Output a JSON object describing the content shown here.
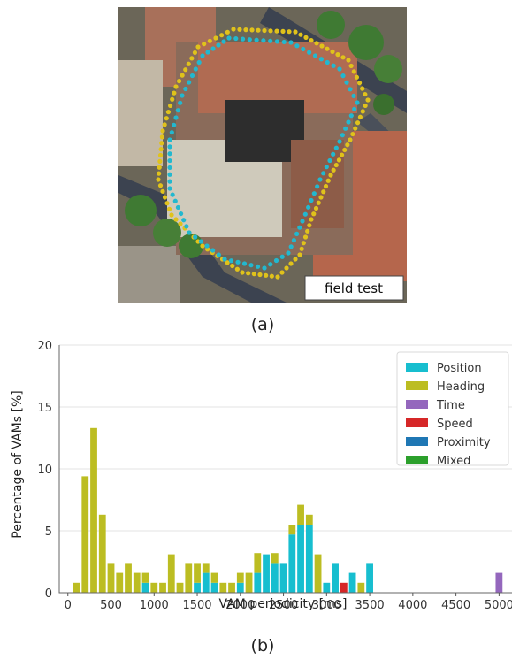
{
  "figure": {
    "photo_label": "field test",
    "caption_a": "(a)",
    "caption_b": "(b)"
  },
  "colors": {
    "trail_cyan": "#22b8cf",
    "trail_yellow": "#e0c21b",
    "roof": "#b06b52",
    "tree": "#3f7a33",
    "road": "#3c4350"
  },
  "chart_data": {
    "type": "bar",
    "stacked": true,
    "xlabel": "VAM periodicity [ms]",
    "ylabel": "Percentage of VAMs [%]",
    "xlim": [
      -100,
      5150
    ],
    "ylim": [
      0,
      20
    ],
    "xticks": [
      0,
      500,
      1000,
      1500,
      2000,
      2500,
      3000,
      3500,
      4000,
      4500,
      5000
    ],
    "yticks": [
      0,
      5,
      10,
      15,
      20
    ],
    "grid": "horizontal",
    "legend_position": "top-right",
    "bin_width": 100,
    "x": [
      100,
      200,
      300,
      400,
      500,
      600,
      700,
      800,
      900,
      1000,
      1100,
      1200,
      1300,
      1400,
      1500,
      1600,
      1700,
      1800,
      1900,
      2000,
      2100,
      2200,
      2300,
      2400,
      2500,
      2600,
      2700,
      2800,
      2900,
      3000,
      3100,
      3200,
      3300,
      3400,
      3500,
      5000
    ],
    "series": [
      {
        "name": "Position",
        "color": "#17becf",
        "values": [
          0,
          0,
          0,
          0,
          0,
          0,
          0,
          0,
          0.8,
          0,
          0,
          0,
          0,
          0,
          0.8,
          1.6,
          0.8,
          0,
          0,
          0.8,
          0,
          1.6,
          3.1,
          2.4,
          2.4,
          4.7,
          5.5,
          5.5,
          0,
          0.8,
          2.4,
          0,
          1.6,
          0,
          2.4,
          0
        ]
      },
      {
        "name": "Heading",
        "color": "#bcbd22",
        "values": [
          0.8,
          9.4,
          13.3,
          6.3,
          2.4,
          1.6,
          2.4,
          1.6,
          0.8,
          0.8,
          0.8,
          3.1,
          0.8,
          2.4,
          1.6,
          0.8,
          0.8,
          0.8,
          0.8,
          0.8,
          1.6,
          1.6,
          0,
          0.8,
          0,
          0.8,
          1.6,
          0.8,
          3.1,
          0,
          0,
          0,
          0,
          0.8,
          0,
          0
        ]
      },
      {
        "name": "Time",
        "color": "#9467bd",
        "values": [
          0,
          0,
          0,
          0,
          0,
          0,
          0,
          0,
          0,
          0,
          0,
          0,
          0,
          0,
          0,
          0,
          0,
          0,
          0,
          0,
          0,
          0,
          0,
          0,
          0,
          0,
          0,
          0,
          0,
          0,
          0,
          0,
          0,
          0,
          0,
          1.6
        ]
      },
      {
        "name": "Speed",
        "color": "#d62728",
        "values": [
          0,
          0,
          0,
          0,
          0,
          0,
          0,
          0,
          0,
          0,
          0,
          0,
          0,
          0,
          0,
          0,
          0,
          0,
          0,
          0,
          0,
          0,
          0,
          0,
          0,
          0,
          0,
          0,
          0,
          0,
          0,
          0.8,
          0,
          0,
          0,
          0
        ]
      },
      {
        "name": "Proximity",
        "color": "#1f77b4",
        "values": [
          0,
          0,
          0,
          0,
          0,
          0,
          0,
          0,
          0,
          0,
          0,
          0,
          0,
          0,
          0,
          0,
          0,
          0,
          0,
          0,
          0,
          0,
          0,
          0,
          0,
          0,
          0,
          0,
          0,
          0,
          0,
          0,
          0,
          0,
          0,
          0
        ]
      },
      {
        "name": "Mixed",
        "color": "#2ca02c",
        "values": [
          0,
          0,
          0,
          0,
          0,
          0,
          0,
          0,
          0,
          0,
          0,
          0,
          0,
          0,
          0,
          0,
          0,
          0,
          0,
          0,
          0,
          0,
          0,
          0,
          0,
          0,
          0,
          0,
          0,
          0,
          0,
          0,
          0,
          0,
          0,
          0
        ]
      }
    ]
  }
}
